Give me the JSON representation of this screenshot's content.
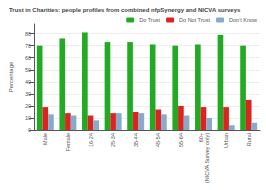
{
  "chart_data": {
    "type": "bar",
    "title": "Trust in Charities: people profiles from combined nfpSynergy and NICVA surveys",
    "categories": [
      "Male",
      "Female",
      "16-24",
      "25-34",
      "35-44",
      "45-54",
      "55-64",
      "60+\n(NICVA Survey only)",
      "Urban",
      "Rural"
    ],
    "series": [
      {
        "name": "Do Trust",
        "color": "#22aa22",
        "values": [
          70,
          76,
          81,
          73,
          73,
          71,
          70,
          71,
          79,
          70
        ]
      },
      {
        "name": "Do Not Trust",
        "color": "#dd2222",
        "values": [
          19,
          14,
          12,
          14,
          15,
          17,
          20,
          19,
          19,
          25
        ]
      },
      {
        "name": "Don't Know",
        "color": "#88aacc",
        "values": [
          13,
          12,
          8,
          14,
          14,
          13,
          12,
          10,
          4,
          6
        ]
      }
    ],
    "ylabel": "Percentage",
    "ylim": [
      0,
      88
    ],
    "yticks": [
      0,
      10,
      20,
      30,
      40,
      50,
      60,
      70,
      80
    ],
    "grid": true,
    "legend": "upper right"
  }
}
